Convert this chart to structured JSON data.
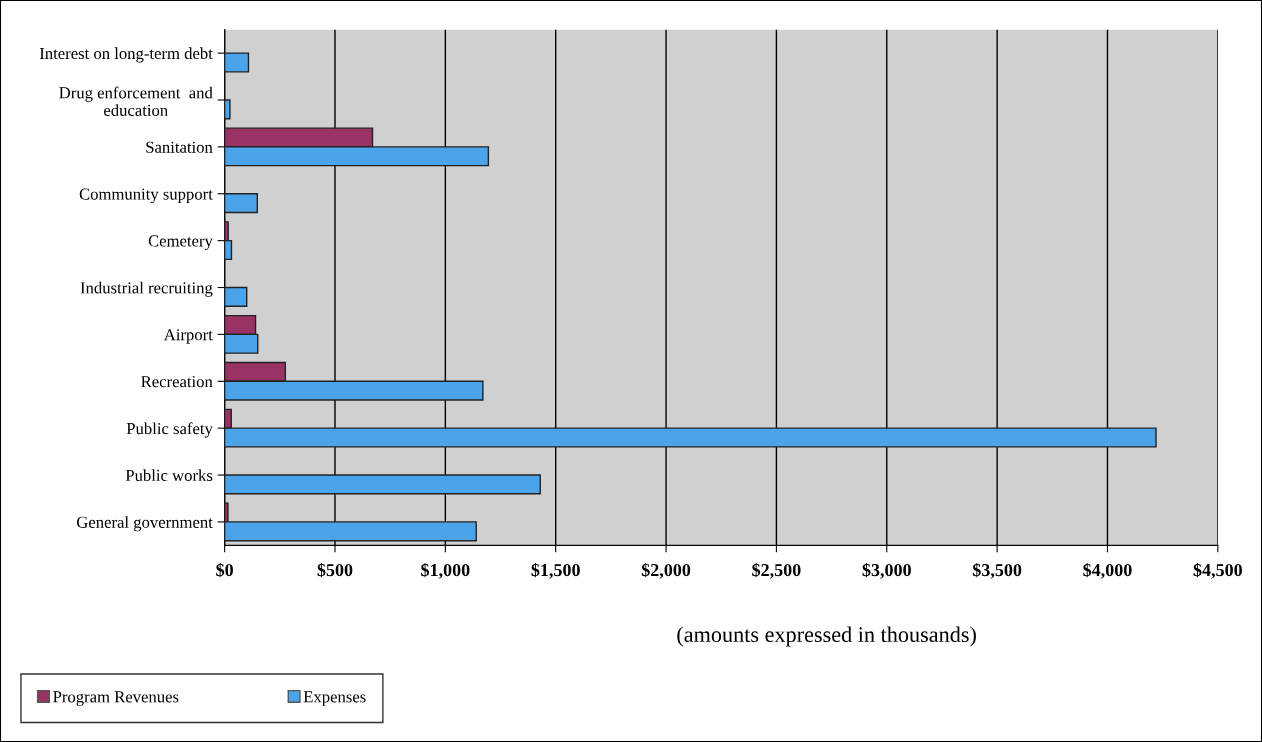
{
  "chart_data": {
    "type": "bar",
    "orientation": "horizontal",
    "categories": [
      "Interest on long-term debt",
      "Drug enforcement  and\neducation",
      "Sanitation",
      "Community support",
      "Cemetery",
      "Industrial recruiting",
      "Airport",
      "Recreation",
      "Public safety",
      "Public works",
      "General government"
    ],
    "series": [
      {
        "name": "Program Revenues",
        "color": "#993366",
        "values": [
          null,
          null,
          670,
          null,
          16,
          null,
          140,
          275,
          30,
          null,
          15
        ]
      },
      {
        "name": "Expenses",
        "color": "#4ba3ea",
        "values": [
          108,
          24,
          1195,
          148,
          31,
          100,
          150,
          1170,
          4220,
          1430,
          1140
        ]
      }
    ],
    "xlim": [
      0,
      4500
    ],
    "xticks": [
      {
        "value": 0,
        "label": "$0"
      },
      {
        "value": 500,
        "label": "$500"
      },
      {
        "value": 1000,
        "label": "$1,000"
      },
      {
        "value": 1500,
        "label": "$1,500"
      },
      {
        "value": 2000,
        "label": "$2,000"
      },
      {
        "value": 2500,
        "label": "$2,500"
      },
      {
        "value": 3000,
        "label": "$3,000"
      },
      {
        "value": 3500,
        "label": "$3,500"
      },
      {
        "value": 4000,
        "label": "$4,000"
      },
      {
        "value": 4500,
        "label": "$4,500"
      }
    ],
    "grid": "x",
    "legend": "bottom left",
    "annotations": [
      "(amounts expressed in thousands)"
    ]
  }
}
